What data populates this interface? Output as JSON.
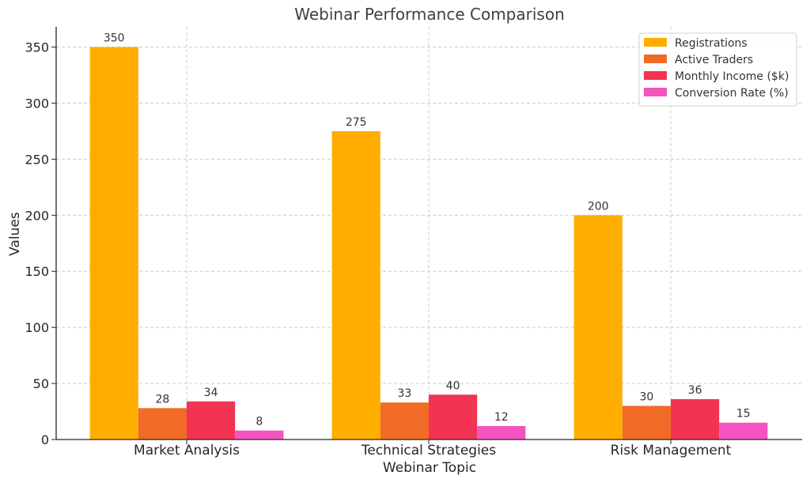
{
  "chart_data": {
    "type": "bar",
    "title": "Webinar Performance Comparison",
    "xlabel": "Webinar Topic",
    "ylabel": "Values",
    "categories": [
      "Market Analysis",
      "Technical Strategies",
      "Risk Management"
    ],
    "series": [
      {
        "name": "Registrations",
        "values": [
          350,
          275,
          200
        ],
        "color": "#FFAE00"
      },
      {
        "name": "Active Traders",
        "values": [
          28,
          33,
          30
        ],
        "color": "#F26B26"
      },
      {
        "name": "Monthly Income ($k)",
        "values": [
          34,
          40,
          36
        ],
        "color": "#F23351"
      },
      {
        "name": "Conversion Rate (%)",
        "values": [
          8,
          12,
          15
        ],
        "color": "#F553BF"
      }
    ],
    "ylim": [
      0,
      368
    ],
    "yticks": [
      0,
      50,
      100,
      150,
      200,
      250,
      300,
      350
    ],
    "grid": true,
    "legend_position": "top-right"
  }
}
